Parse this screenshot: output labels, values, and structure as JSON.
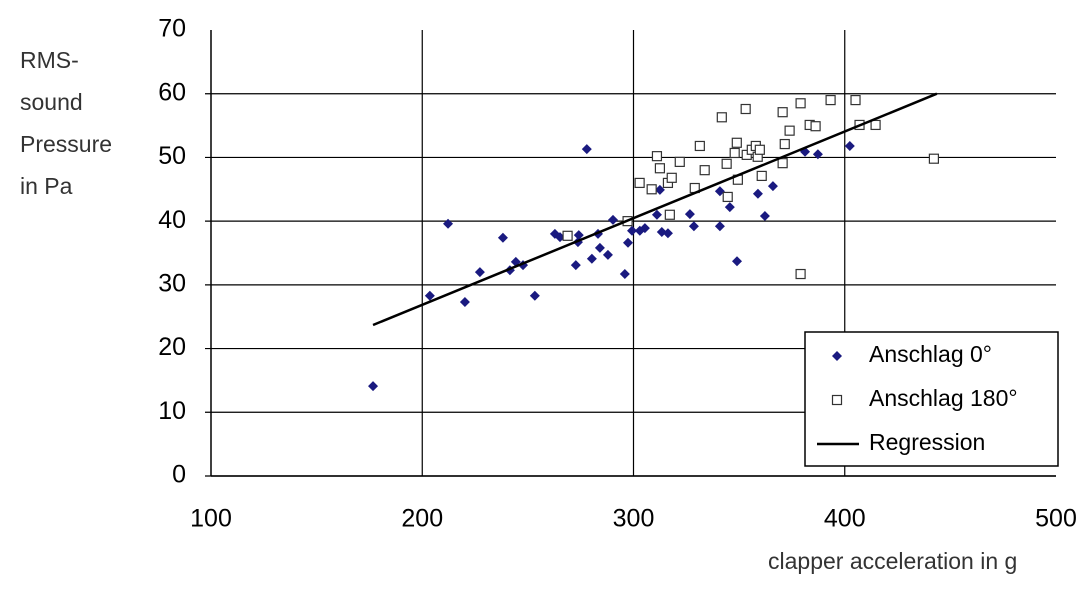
{
  "chart_data": {
    "type": "scatter",
    "ylabel": [
      "RMS-",
      "sound",
      "Pressure",
      "in Pa"
    ],
    "xlabel": "clapper acceleration in g",
    "xlim": [
      100,
      500
    ],
    "xticks": [
      100,
      200,
      300,
      400,
      500
    ],
    "ylim": [
      0,
      70
    ],
    "yticks": [
      0,
      10,
      20,
      30,
      40,
      50,
      60,
      70
    ],
    "grid": true,
    "legend": "lower right",
    "series": [
      {
        "name": "Anschlag 0°",
        "color": "#1a1a80",
        "marker": "diamond",
        "x": [
          176.7,
          203.6,
          212.2,
          220.2,
          227.3,
          238.2,
          241.5,
          244.3,
          247.7,
          253.3,
          262.8,
          265.2,
          272.7,
          273.7,
          274.1,
          280.3,
          277.9,
          283.2,
          284.1,
          287.9,
          290.3,
          295.9,
          297.4,
          299.3,
          303.0,
          305.4,
          311.1,
          312.5,
          313.4,
          316.3,
          326.7,
          328.6,
          340.9,
          340.9,
          345.6,
          349.0,
          358.9,
          362.2,
          366.0,
          381.2,
          387.3,
          402.4
        ],
        "values": [
          14.1,
          28.3,
          39.6,
          27.3,
          32.0,
          37.4,
          32.3,
          33.6,
          33.1,
          28.3,
          38.0,
          37.5,
          33.1,
          36.7,
          37.8,
          34.1,
          51.3,
          38.0,
          35.8,
          34.7,
          40.2,
          31.7,
          36.6,
          38.5,
          38.5,
          38.9,
          41.0,
          44.9,
          38.3,
          38.1,
          41.1,
          39.2,
          44.7,
          39.2,
          42.2,
          33.7,
          44.3,
          40.8,
          45.5,
          50.9,
          50.5,
          51.8
        ]
      },
      {
        "name": "Anschlag 180°",
        "color": "#333333",
        "marker": "square",
        "x": [
          268.8,
          297.2,
          302.9,
          308.6,
          311.1,
          312.5,
          316.3,
          317.2,
          318.1,
          321.9,
          329.0,
          331.4,
          333.7,
          341.8,
          344.1,
          344.6,
          347.9,
          348.9,
          349.4,
          353.1,
          353.6,
          356.0,
          357.9,
          358.8,
          359.8,
          360.7,
          370.6,
          370.6,
          371.6,
          373.9,
          379.1,
          379.1,
          383.4,
          386.2,
          393.3,
          405.1,
          407.0,
          414.6,
          442.2
        ],
        "values": [
          37.7,
          40.0,
          46.0,
          45.0,
          50.2,
          48.3,
          46.0,
          41.0,
          46.8,
          49.3,
          45.2,
          51.8,
          48.0,
          56.3,
          49.0,
          43.8,
          50.7,
          52.3,
          46.5,
          57.6,
          50.4,
          51.2,
          51.8,
          50.1,
          51.2,
          47.1,
          57.1,
          49.1,
          52.1,
          54.2,
          58.5,
          31.7,
          55.1,
          54.9,
          59.0,
          59.0,
          55.1,
          55.1,
          49.8
        ]
      },
      {
        "name": "Regression",
        "color": "#000000",
        "marker": "line",
        "x": [
          176.7,
          443.6
        ],
        "values": [
          23.7,
          60.0
        ]
      }
    ]
  }
}
